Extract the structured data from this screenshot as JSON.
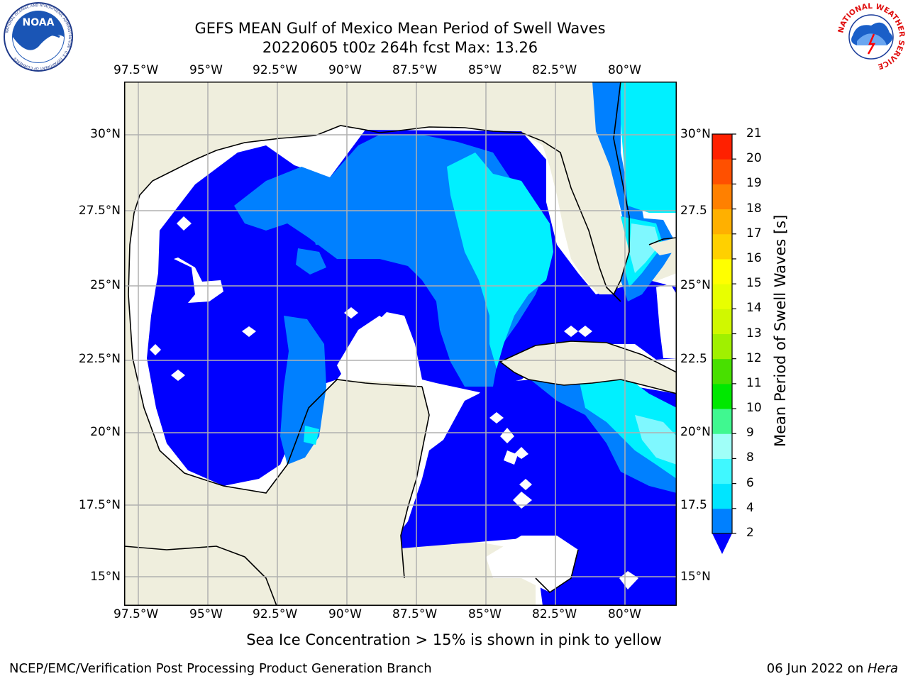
{
  "header": {
    "title_line1": "GEFS MEAN Gulf of Mexico Mean Period of Swell Waves",
    "title_line2": "20220605 t00z 264h fcst   Max: 13.26"
  },
  "logos": {
    "left": "NOAA",
    "left_ring": "NATIONAL OCEANIC AND ATMOSPHERIC ADMINISTRATION · U.S. DEPARTMENT OF COMMERCE",
    "right_ring": "NATIONAL WEATHER SERVICE"
  },
  "map": {
    "lon_labels": [
      "97.5°W",
      "95°W",
      "92.5°W",
      "90°W",
      "87.5°W",
      "85°W",
      "82.5°W",
      "80°W"
    ],
    "lat_labels_left": [
      "30°N",
      "27.5°N",
      "25°N",
      "22.5°N",
      "20°N",
      "17.5°N",
      "15°N"
    ],
    "lat_labels_right": [
      "30°N",
      "27.5",
      "25°N",
      "22.5",
      "20°N",
      "17.5",
      "15°N"
    ],
    "colors": {
      "land": "#efeedd",
      "ocean_no_data": "#ffffff",
      "grid": "#b0b0b0",
      "coast": "#000000"
    }
  },
  "colorbar": {
    "label": "Mean Period of Swell Waves [s]",
    "ticks": [
      "2",
      "4",
      "6",
      "8",
      "9",
      "10",
      "11",
      "12",
      "13",
      "14",
      "15",
      "16",
      "17",
      "18",
      "19",
      "20",
      "21"
    ],
    "under_color": "#0000ff",
    "colors": [
      "#0080ff",
      "#00e5ff",
      "#40f8ff",
      "#a0fff8",
      "#40f890",
      "#00e800",
      "#48e000",
      "#a0f000",
      "#d0f800",
      "#e8ff00",
      "#ffff00",
      "#ffd000",
      "#ffb000",
      "#ff8000",
      "#ff5000",
      "#ff2000"
    ]
  },
  "footer": {
    "note": "Sea Ice Concentration > 15% is shown in pink to yellow",
    "credit": "NCEP/EMC/Verification Post Processing Product Generation Branch",
    "date_prefix": "06 Jun 2022 on ",
    "host": "Hera"
  }
}
